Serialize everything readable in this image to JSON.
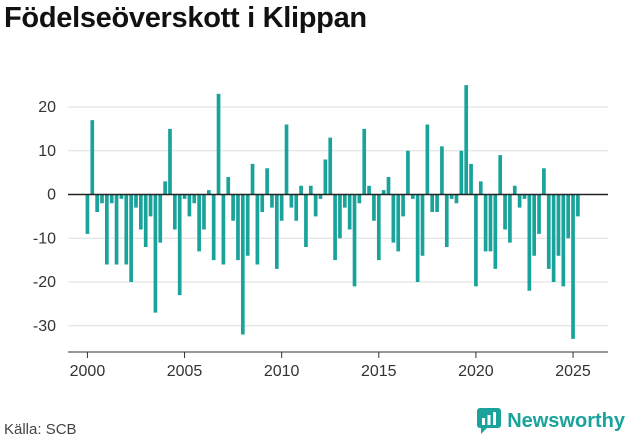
{
  "title": "Födelseöverskott i Klippan",
  "source": "Källa: SCB",
  "brand": "Newsworthy",
  "colors": {
    "bar": "#1aa39a",
    "zero_line": "#222222",
    "grid": "#dddddd",
    "brand": "#1aa39a"
  },
  "chart_data": {
    "type": "bar",
    "title": "Födelseöverskott i Klippan",
    "xlabel": "",
    "ylabel": "",
    "ylim": [
      -36,
      28
    ],
    "xlim": [
      1999.0,
      2026.8
    ],
    "yticks": [
      20,
      10,
      0,
      -10,
      -20,
      -30
    ],
    "xticks": [
      2000,
      2005,
      2010,
      2015,
      2020,
      2025
    ],
    "grid": true,
    "bar_width_years": 0.19,
    "x": [
      2000.0,
      2000.25,
      2000.5,
      2000.75,
      2001.0,
      2001.25,
      2001.5,
      2001.75,
      2002.0,
      2002.25,
      2002.5,
      2002.75,
      2003.0,
      2003.25,
      2003.5,
      2003.75,
      2004.0,
      2004.25,
      2004.5,
      2004.75,
      2005.0,
      2005.25,
      2005.5,
      2005.75,
      2006.0,
      2006.25,
      2006.5,
      2006.75,
      2007.0,
      2007.25,
      2007.5,
      2007.75,
      2008.0,
      2008.25,
      2008.5,
      2008.75,
      2009.0,
      2009.25,
      2009.5,
      2009.75,
      2010.0,
      2010.25,
      2010.5,
      2010.75,
      2011.0,
      2011.25,
      2011.5,
      2011.75,
      2012.0,
      2012.25,
      2012.5,
      2012.75,
      2013.0,
      2013.25,
      2013.5,
      2013.75,
      2014.0,
      2014.25,
      2014.5,
      2014.75,
      2015.0,
      2015.25,
      2015.5,
      2015.75,
      2016.0,
      2016.25,
      2016.5,
      2016.75,
      2017.0,
      2017.25,
      2017.5,
      2017.75,
      2018.0,
      2018.25,
      2018.5,
      2018.75,
      2019.0,
      2019.25,
      2019.5,
      2019.75,
      2020.0,
      2020.25,
      2020.5,
      2020.75,
      2021.0,
      2021.25,
      2021.5,
      2021.75,
      2022.0,
      2022.25,
      2022.5,
      2022.75,
      2023.0,
      2023.25,
      2023.5,
      2023.75,
      2024.0,
      2024.25,
      2024.5,
      2024.75,
      2025.0,
      2025.25
    ],
    "values": [
      -9,
      17,
      -4,
      -2,
      -16,
      -2,
      -16,
      -1,
      -16,
      -20,
      -3,
      -8,
      -12,
      -5,
      -27,
      -11,
      3,
      15,
      -8,
      -23,
      -1,
      -5,
      -2,
      -13,
      -8,
      1,
      -15,
      23,
      -16,
      4,
      -6,
      -15,
      -32,
      -14,
      7,
      -16,
      -4,
      6,
      -3,
      -17,
      -6,
      16,
      -3,
      -6,
      2,
      -12,
      2,
      -5,
      -1,
      8,
      13,
      -15,
      -10,
      -3,
      -8,
      -21,
      -2,
      15,
      2,
      -6,
      -15,
      1,
      4,
      -11,
      -13,
      -5,
      10,
      -1,
      -20,
      -14,
      16,
      -4,
      -4,
      11,
      -12,
      -1,
      -2,
      10,
      25,
      7,
      -21,
      3,
      -13,
      -13,
      -17,
      9,
      -8,
      -11,
      2,
      -3,
      -1,
      -22,
      -14,
      -9,
      6,
      -17,
      -20,
      -14,
      -21,
      -10,
      -33,
      -5
    ]
  }
}
